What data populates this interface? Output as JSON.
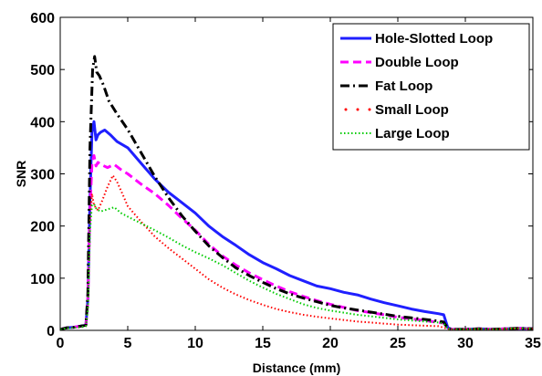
{
  "chart_data": {
    "type": "line",
    "title": "",
    "xlabel": "Distance (mm)",
    "ylabel": "SNR",
    "xlim": [
      0,
      35
    ],
    "ylim": [
      0,
      600
    ],
    "xticks": [
      0,
      5,
      10,
      15,
      20,
      25,
      30,
      35
    ],
    "yticks": [
      0,
      100,
      200,
      300,
      400,
      500,
      600
    ],
    "grid": false,
    "legend_position": "top-right",
    "series": [
      {
        "name": "Hole-Slotted Loop",
        "color": "#1f1fff",
        "style": "solid",
        "points": [
          [
            0,
            2
          ],
          [
            0.5,
            5
          ],
          [
            1,
            6
          ],
          [
            1.5,
            8
          ],
          [
            1.9,
            10
          ],
          [
            2.05,
            60
          ],
          [
            2.2,
            250
          ],
          [
            2.35,
            380
          ],
          [
            2.5,
            400
          ],
          [
            2.65,
            365
          ],
          [
            2.8,
            375
          ],
          [
            3,
            380
          ],
          [
            3.3,
            384
          ],
          [
            3.7,
            375
          ],
          [
            4.2,
            362
          ],
          [
            5,
            350
          ],
          [
            6,
            320
          ],
          [
            7,
            290
          ],
          [
            8,
            265
          ],
          [
            9,
            245
          ],
          [
            10,
            225
          ],
          [
            11,
            200
          ],
          [
            12,
            180
          ],
          [
            13,
            163
          ],
          [
            14,
            145
          ],
          [
            15,
            130
          ],
          [
            16,
            118
          ],
          [
            17,
            105
          ],
          [
            18,
            95
          ],
          [
            19,
            85
          ],
          [
            20,
            80
          ],
          [
            21,
            73
          ],
          [
            22,
            68
          ],
          [
            23,
            60
          ],
          [
            24,
            53
          ],
          [
            25,
            47
          ],
          [
            26,
            41
          ],
          [
            27,
            36
          ],
          [
            28,
            32
          ],
          [
            28.4,
            30
          ],
          [
            28.7,
            5
          ],
          [
            29,
            2
          ],
          [
            30,
            2
          ],
          [
            31,
            3
          ],
          [
            32,
            2
          ],
          [
            33,
            3
          ],
          [
            34,
            4
          ],
          [
            35,
            3
          ]
        ]
      },
      {
        "name": "Double Loop",
        "color": "#ff00ff",
        "style": "dashed",
        "points": [
          [
            0,
            2
          ],
          [
            0.5,
            5
          ],
          [
            1,
            6
          ],
          [
            1.5,
            8
          ],
          [
            1.9,
            10
          ],
          [
            2.05,
            60
          ],
          [
            2.2,
            230
          ],
          [
            2.35,
            320
          ],
          [
            2.5,
            335
          ],
          [
            2.65,
            315
          ],
          [
            2.8,
            322
          ],
          [
            3,
            318
          ],
          [
            3.5,
            312
          ],
          [
            4,
            318
          ],
          [
            4.5,
            308
          ],
          [
            5,
            300
          ],
          [
            6,
            280
          ],
          [
            7,
            262
          ],
          [
            8,
            240
          ],
          [
            9,
            215
          ],
          [
            10,
            192
          ],
          [
            11,
            165
          ],
          [
            12,
            143
          ],
          [
            13,
            125
          ],
          [
            14,
            110
          ],
          [
            15,
            97
          ],
          [
            16,
            85
          ],
          [
            17,
            74
          ],
          [
            18,
            65
          ],
          [
            19,
            57
          ],
          [
            20,
            50
          ],
          [
            21,
            44
          ],
          [
            22,
            38
          ],
          [
            23,
            34
          ],
          [
            24,
            30
          ],
          [
            25,
            25
          ],
          [
            26,
            22
          ],
          [
            27,
            19
          ],
          [
            28,
            15
          ],
          [
            28.4,
            14
          ],
          [
            28.7,
            4
          ],
          [
            29,
            2
          ],
          [
            30,
            2
          ],
          [
            31,
            3
          ],
          [
            32,
            2
          ],
          [
            33,
            3
          ],
          [
            34,
            4
          ],
          [
            35,
            3
          ]
        ]
      },
      {
        "name": "Fat Loop",
        "color": "#000000",
        "style": "dashdot",
        "points": [
          [
            0,
            2
          ],
          [
            0.5,
            5
          ],
          [
            1,
            6
          ],
          [
            1.5,
            8
          ],
          [
            1.9,
            10
          ],
          [
            2.05,
            70
          ],
          [
            2.2,
            350
          ],
          [
            2.4,
            500
          ],
          [
            2.55,
            525
          ],
          [
            2.7,
            495
          ],
          [
            2.9,
            488
          ],
          [
            3.2,
            470
          ],
          [
            3.6,
            440
          ],
          [
            4.2,
            415
          ],
          [
            5,
            385
          ],
          [
            6,
            340
          ],
          [
            7,
            295
          ],
          [
            8,
            255
          ],
          [
            9,
            220
          ],
          [
            10,
            190
          ],
          [
            11,
            162
          ],
          [
            12,
            140
          ],
          [
            13,
            120
          ],
          [
            14,
            105
          ],
          [
            15,
            92
          ],
          [
            16,
            80
          ],
          [
            17,
            70
          ],
          [
            18,
            62
          ],
          [
            19,
            55
          ],
          [
            20,
            48
          ],
          [
            21,
            43
          ],
          [
            22,
            39
          ],
          [
            23,
            35
          ],
          [
            24,
            31
          ],
          [
            25,
            27
          ],
          [
            26,
            24
          ],
          [
            27,
            21
          ],
          [
            28,
            18
          ],
          [
            28.4,
            16
          ],
          [
            28.7,
            4
          ],
          [
            29,
            2
          ],
          [
            30,
            2
          ],
          [
            31,
            3
          ],
          [
            32,
            2
          ],
          [
            33,
            3
          ],
          [
            34,
            4
          ],
          [
            35,
            3
          ]
        ]
      },
      {
        "name": "Small Loop",
        "color": "#ff0000",
        "style": "dotted",
        "points": [
          [
            0,
            2
          ],
          [
            0.5,
            4
          ],
          [
            1,
            5
          ],
          [
            1.5,
            6
          ],
          [
            1.9,
            8
          ],
          [
            2.05,
            40
          ],
          [
            2.2,
            200
          ],
          [
            2.35,
            262
          ],
          [
            2.5,
            240
          ],
          [
            2.8,
            230
          ],
          [
            3.1,
            248
          ],
          [
            3.5,
            275
          ],
          [
            3.9,
            297
          ],
          [
            4.2,
            285
          ],
          [
            4.6,
            262
          ],
          [
            5,
            238
          ],
          [
            6,
            208
          ],
          [
            7,
            180
          ],
          [
            8,
            158
          ],
          [
            9,
            138
          ],
          [
            10,
            118
          ],
          [
            11,
            98
          ],
          [
            12,
            82
          ],
          [
            13,
            69
          ],
          [
            14,
            58
          ],
          [
            15,
            49
          ],
          [
            16,
            41
          ],
          [
            17,
            35
          ],
          [
            18,
            30
          ],
          [
            19,
            26
          ],
          [
            20,
            23
          ],
          [
            21,
            20
          ],
          [
            22,
            17
          ],
          [
            23,
            15
          ],
          [
            24,
            13
          ],
          [
            25,
            11
          ],
          [
            26,
            10
          ],
          [
            27,
            9
          ],
          [
            28,
            8
          ],
          [
            28.7,
            3
          ],
          [
            29,
            2
          ],
          [
            30,
            2
          ],
          [
            31,
            3
          ],
          [
            32,
            2
          ],
          [
            33,
            3
          ],
          [
            34,
            4
          ],
          [
            35,
            3
          ]
        ]
      },
      {
        "name": "Large Loop",
        "color": "#00cc00",
        "style": "dotted",
        "points": [
          [
            0,
            2
          ],
          [
            0.5,
            4
          ],
          [
            1,
            5
          ],
          [
            1.5,
            6
          ],
          [
            1.9,
            8
          ],
          [
            2.05,
            40
          ],
          [
            2.2,
            190
          ],
          [
            2.35,
            240
          ],
          [
            2.5,
            242
          ],
          [
            2.7,
            232
          ],
          [
            3,
            228
          ],
          [
            3.5,
            232
          ],
          [
            4,
            236
          ],
          [
            4.5,
            225
          ],
          [
            5,
            218
          ],
          [
            6,
            205
          ],
          [
            7,
            192
          ],
          [
            8,
            178
          ],
          [
            9,
            163
          ],
          [
            10,
            150
          ],
          [
            11,
            138
          ],
          [
            12,
            125
          ],
          [
            13,
            110
          ],
          [
            14,
            95
          ],
          [
            15,
            82
          ],
          [
            16,
            70
          ],
          [
            17,
            60
          ],
          [
            18,
            50
          ],
          [
            19,
            43
          ],
          [
            20,
            38
          ],
          [
            21,
            34
          ],
          [
            22,
            30
          ],
          [
            23,
            27
          ],
          [
            24,
            24
          ],
          [
            25,
            21
          ],
          [
            26,
            19
          ],
          [
            27,
            17
          ],
          [
            28,
            15
          ],
          [
            28.4,
            13
          ],
          [
            28.7,
            3
          ],
          [
            29,
            2
          ],
          [
            30,
            2
          ],
          [
            31,
            3
          ],
          [
            32,
            2
          ],
          [
            33,
            3
          ],
          [
            34,
            4
          ],
          [
            35,
            3
          ]
        ]
      }
    ]
  }
}
